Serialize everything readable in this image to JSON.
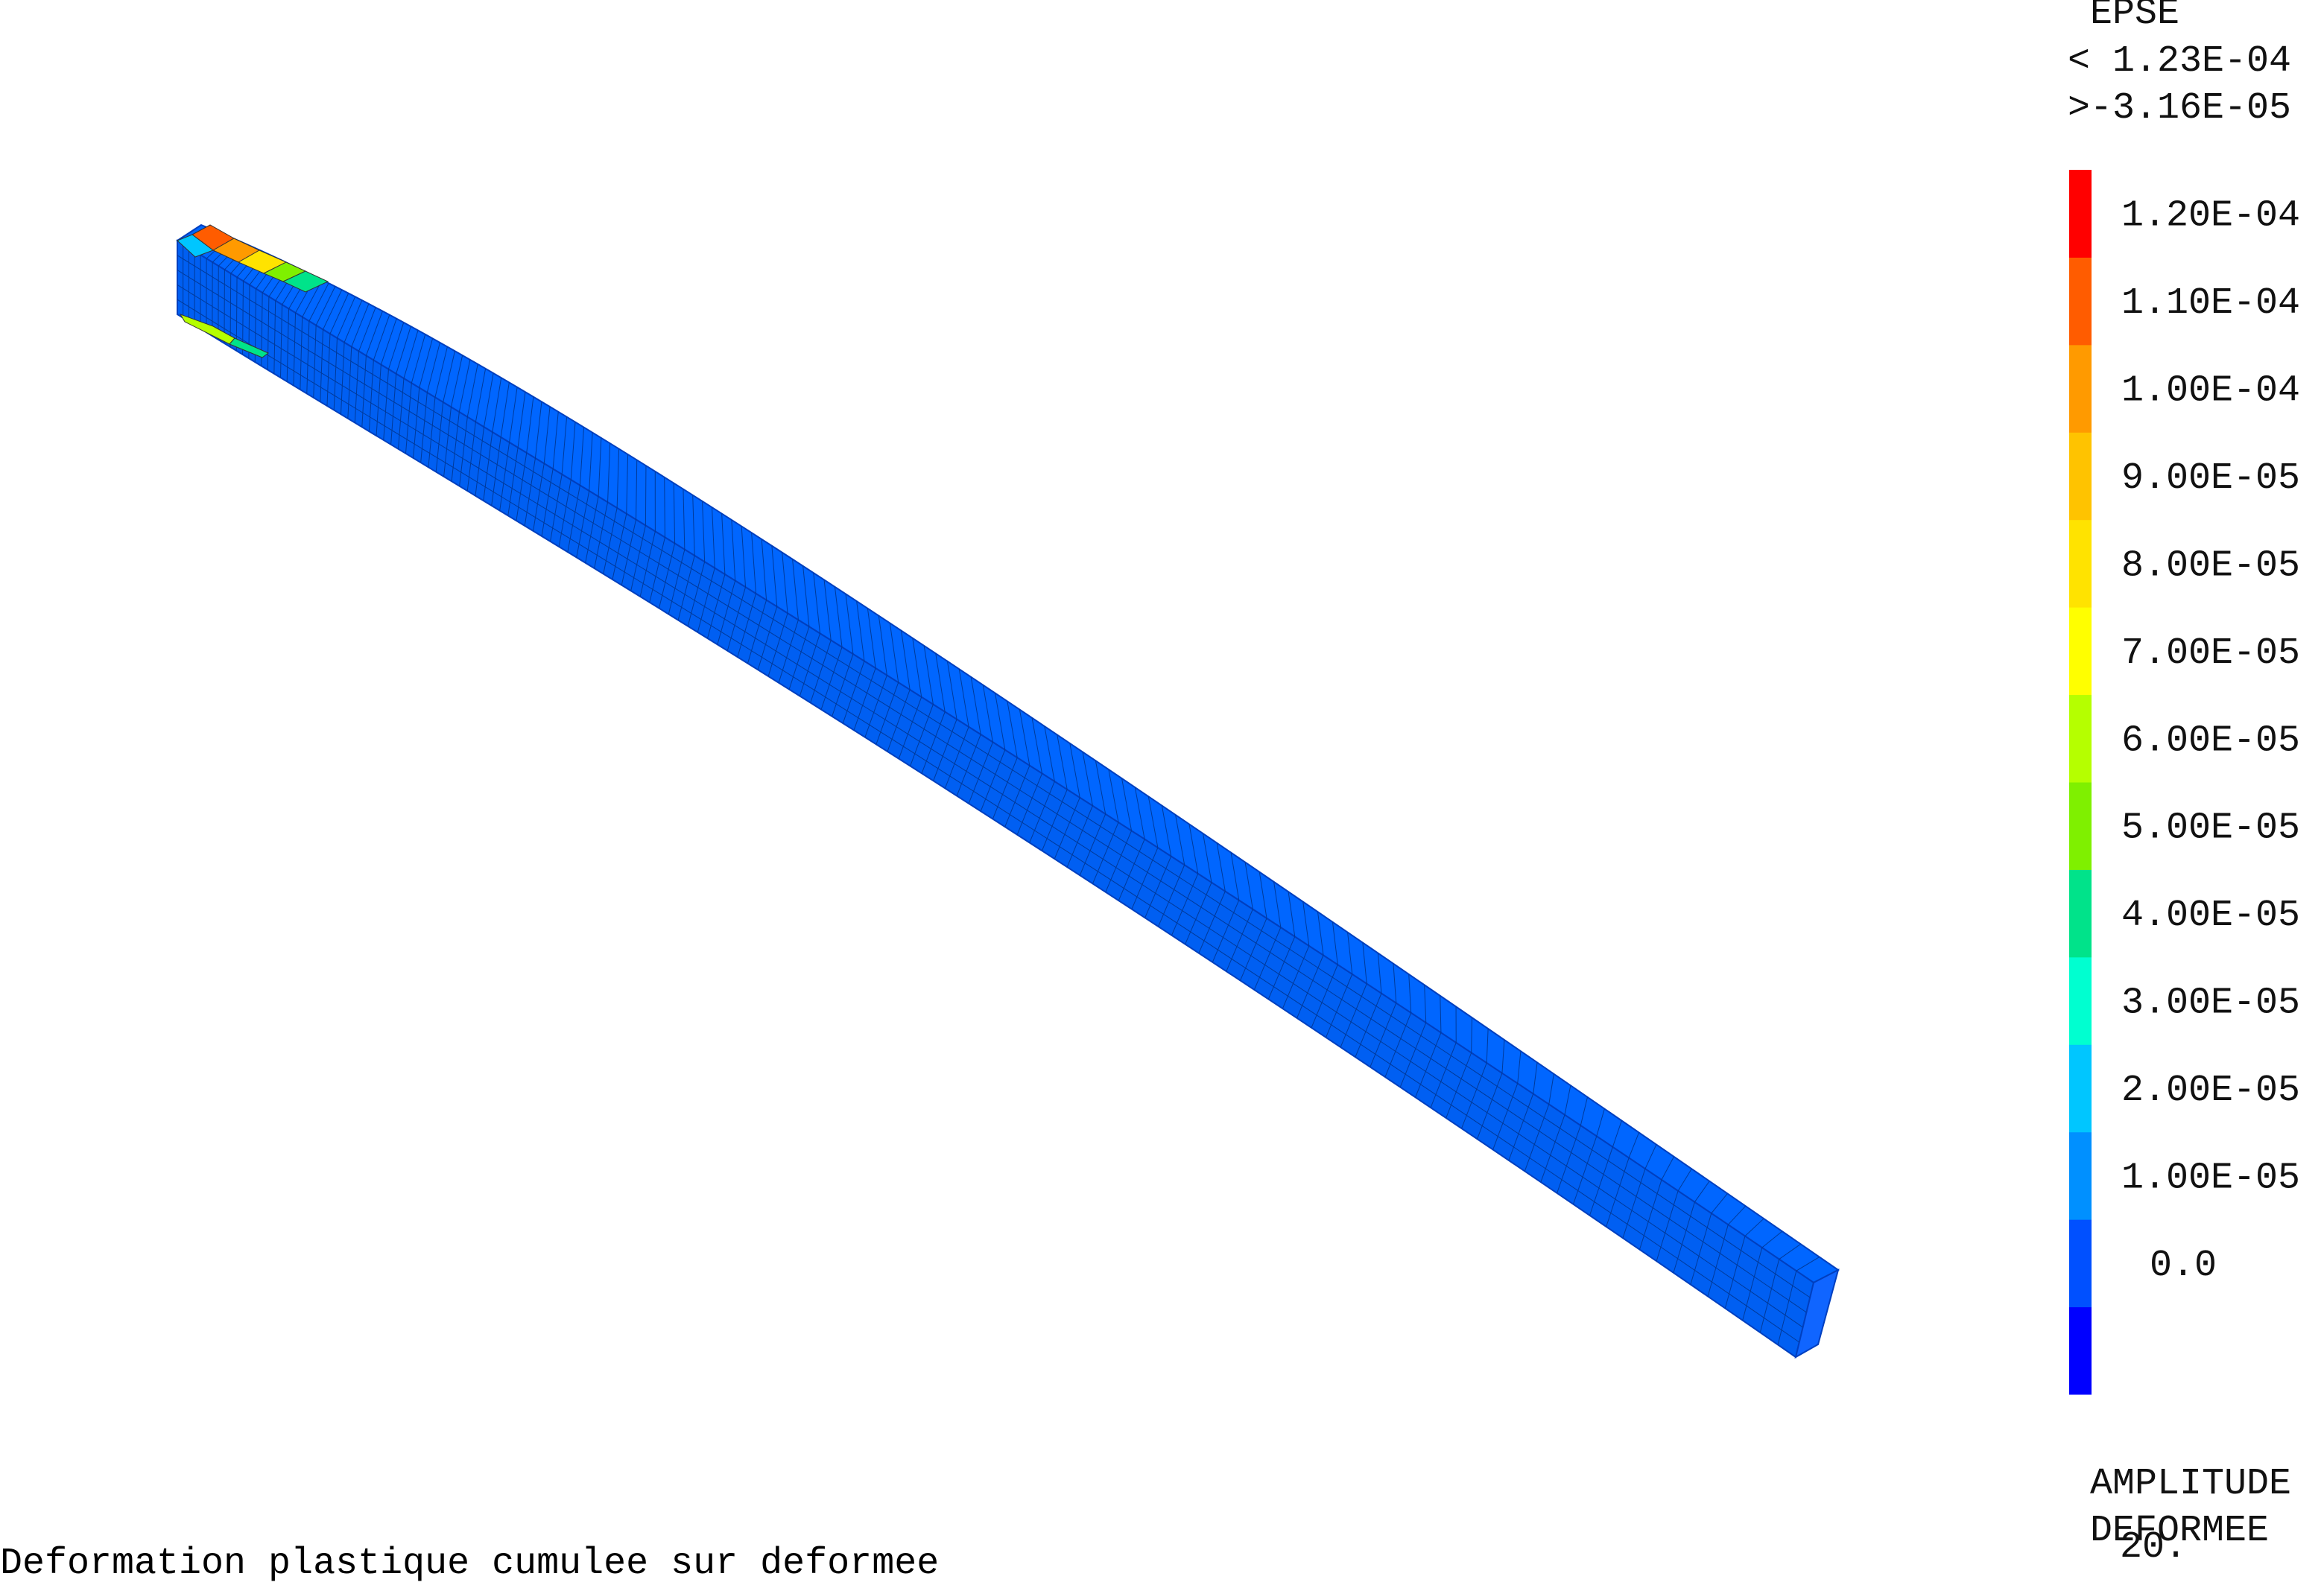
{
  "legend": {
    "field_name": "EPSE",
    "max_label": "< 1.23E-04",
    "min_label": ">-3.16E-05",
    "bands": [
      {
        "color": "#0000ff"
      },
      {
        "color": "#0050ff",
        "label": "0.0"
      },
      {
        "color": "#0090ff",
        "label": "1.00E-05"
      },
      {
        "color": "#00c6ff",
        "label": "2.00E-05"
      },
      {
        "color": "#00ffd0",
        "label": "3.00E-05"
      },
      {
        "color": "#00e38a",
        "label": "4.00E-05"
      },
      {
        "color": "#7ff000",
        "label": "5.00E-05"
      },
      {
        "color": "#b5ff00",
        "label": "6.00E-05"
      },
      {
        "color": "#ffff00",
        "label": "7.00E-05"
      },
      {
        "color": "#ffe300",
        "label": "8.00E-05"
      },
      {
        "color": "#ffc300",
        "label": "9.00E-05"
      },
      {
        "color": "#ff9a00",
        "label": "1.00E-04"
      },
      {
        "color": "#ff5c00",
        "label": "1.10E-04"
      },
      {
        "color": "#ff0000",
        "label": "1.20E-04"
      }
    ]
  },
  "amplitude": {
    "label": "AMPLITUDE",
    "deformee_label": "DEFORMEE",
    "value": "20."
  },
  "caption": "Deformation plastique cumulee sur deformee"
}
